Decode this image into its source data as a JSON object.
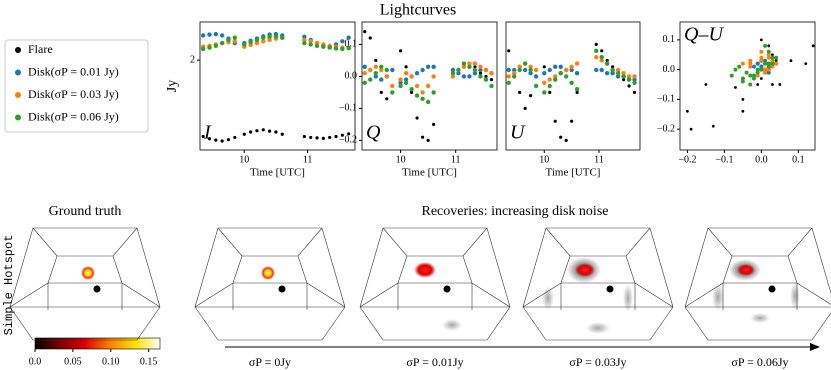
{
  "figure_title": "Lightcurves",
  "chart_data": [
    {
      "type": "scatter",
      "panel_label": "I",
      "y_label": "Jy",
      "x_label": "Time [UTC]",
      "xlim": [
        9.3,
        11.75
      ],
      "xticks": [
        10,
        11
      ],
      "ylim": [
        0,
        2.85
      ],
      "yticks": [
        2
      ],
      "x": [
        9.35,
        9.45,
        9.55,
        9.65,
        9.75,
        9.85,
        10.0,
        10.1,
        10.2,
        10.3,
        10.4,
        10.5,
        10.6,
        10.95,
        11.05,
        11.15,
        11.25,
        11.35,
        11.45,
        11.55,
        11.65
      ],
      "series": [
        {
          "name": "Flare",
          "color": "#000000",
          "values": [
            0.3,
            0.25,
            0.22,
            0.2,
            0.23,
            0.28,
            0.35,
            0.4,
            0.43,
            0.45,
            0.42,
            0.4,
            0.35,
            0.3,
            0.28,
            0.27,
            0.26,
            0.28,
            0.3,
            0.33,
            0.36
          ]
        },
        {
          "name": "Disk(σP = 0.01 Jy)",
          "color": "#1f77b4",
          "values": [
            2.55,
            2.57,
            2.58,
            2.55,
            2.48,
            2.38,
            2.38,
            2.43,
            2.48,
            2.53,
            2.57,
            2.58,
            2.55,
            2.52,
            2.45,
            2.38,
            2.32,
            2.3,
            2.35,
            2.42,
            2.5
          ]
        },
        {
          "name": "Disk(σP = 0.03 Jy)",
          "color": "#ff7f0e",
          "values": [
            2.3,
            2.32,
            2.35,
            2.38,
            2.4,
            2.42,
            2.3,
            2.34,
            2.38,
            2.42,
            2.45,
            2.48,
            2.5,
            2.45,
            2.42,
            2.38,
            2.35,
            2.32,
            2.3,
            2.28,
            2.27
          ]
        },
        {
          "name": "Disk(σP = 0.06 Jy)",
          "color": "#2ca02c",
          "values": [
            2.25,
            2.28,
            2.32,
            2.38,
            2.45,
            2.5,
            2.35,
            2.4,
            2.45,
            2.5,
            2.52,
            2.53,
            2.5,
            2.38,
            2.35,
            2.32,
            2.3,
            2.28,
            2.26,
            2.25,
            2.27
          ]
        }
      ]
    },
    {
      "type": "scatter",
      "panel_label": "Q",
      "x_label": "Time [UTC]",
      "xlim": [
        9.3,
        11.75
      ],
      "xticks": [
        10,
        11
      ],
      "ylim": [
        -0.23,
        0.17
      ],
      "yticks": [
        {
          "value": -0.2,
          "label": "−0.2"
        },
        {
          "value": -0.1,
          "label": "−0.1"
        },
        {
          "value": 0,
          "label": "0.0"
        },
        0.1
      ],
      "x": [
        9.35,
        9.45,
        9.55,
        9.65,
        9.75,
        9.85,
        10.0,
        10.1,
        10.2,
        10.3,
        10.4,
        10.5,
        10.6,
        10.95,
        11.05,
        11.15,
        11.25,
        11.35,
        11.45,
        11.55,
        11.65
      ],
      "series": [
        {
          "color": "#000000",
          "values": [
            0.14,
            0.12,
            0.05,
            -0.05,
            -0.07,
            0.02,
            0.08,
            0.03,
            -0.05,
            -0.13,
            -0.19,
            -0.2,
            -0.15,
            0.0,
            0.02,
            0.03,
            0.04,
            0.03,
            0.01,
            0.0,
            -0.01
          ]
        },
        {
          "color": "#1f77b4",
          "values": [
            0.03,
            0.02,
            0.0,
            -0.01,
            0.0,
            0.02,
            -0.02,
            -0.01,
            0.0,
            0.01,
            0.02,
            0.03,
            0.03,
            0.02,
            0.01,
            0.0,
            0.0,
            0.01,
            0.02,
            0.02,
            0.01
          ]
        },
        {
          "color": "#ff7f0e",
          "values": [
            0.01,
            0.02,
            0.03,
            0.02,
            0.0,
            -0.03,
            -0.01,
            0.01,
            0.0,
            -0.03,
            -0.05,
            -0.03,
            0.0,
            0.0,
            0.02,
            0.03,
            0.04,
            0.04,
            0.03,
            0.02,
            0.01
          ]
        },
        {
          "color": "#2ca02c",
          "values": [
            -0.02,
            -0.01,
            0.01,
            0.03,
            0.02,
            -0.05,
            -0.03,
            -0.02,
            -0.04,
            -0.06,
            -0.07,
            -0.08,
            -0.05,
            0.01,
            0.02,
            0.04,
            0.03,
            0.02,
            0.0,
            -0.01,
            -0.03
          ]
        }
      ]
    },
    {
      "type": "scatter",
      "panel_label": "U",
      "x_label": "Time [UTC]",
      "xlim": [
        9.3,
        11.75
      ],
      "xticks": [
        10,
        11
      ],
      "ylim": [
        -0.23,
        0.17
      ],
      "x": [
        9.35,
        9.45,
        9.55,
        9.65,
        9.75,
        9.85,
        10.0,
        10.1,
        10.2,
        10.3,
        10.4,
        10.5,
        10.6,
        10.95,
        11.05,
        11.15,
        11.25,
        11.35,
        11.45,
        11.55,
        11.65
      ],
      "series": [
        {
          "color": "#000000",
          "values": [
            0.08,
            0.02,
            -0.05,
            -0.1,
            -0.06,
            0.0,
            0.03,
            -0.05,
            -0.14,
            -0.19,
            -0.2,
            -0.14,
            -0.05,
            0.1,
            0.08,
            0.05,
            0.03,
            0.01,
            -0.01,
            -0.03,
            -0.05
          ]
        },
        {
          "color": "#1f77b4",
          "values": [
            0.02,
            0.02,
            0.03,
            0.02,
            0.01,
            0.0,
            0.01,
            0.02,
            0.03,
            0.03,
            0.02,
            0.02,
            0.01,
            0.02,
            0.02,
            0.01,
            0.01,
            0.0,
            0.0,
            -0.01,
            -0.01
          ]
        },
        {
          "color": "#ff7f0e",
          "values": [
            0.0,
            0.01,
            0.03,
            0.04,
            0.03,
            0.02,
            -0.02,
            -0.01,
            0.0,
            0.01,
            0.02,
            0.03,
            0.04,
            0.06,
            0.05,
            0.04,
            0.02,
            0.02,
            0.01,
            0.0,
            0.0
          ]
        },
        {
          "color": "#2ca02c",
          "values": [
            -0.02,
            0.0,
            0.02,
            0.04,
            0.02,
            -0.03,
            -0.05,
            -0.03,
            -0.01,
            0.01,
            0.0,
            -0.02,
            -0.04,
            0.08,
            0.06,
            0.04,
            0.02,
            0.01,
            0.0,
            -0.01,
            -0.02
          ]
        }
      ]
    },
    {
      "type": "scatter",
      "panel_label": "Q–U",
      "xlim": [
        -0.22,
        0.145
      ],
      "xticks": [
        {
          "value": -0.2,
          "label": "−0.2"
        },
        {
          "value": -0.1,
          "label": "−0.1"
        },
        {
          "value": 0,
          "label": "0.0"
        },
        0.1
      ],
      "ylim": [
        -0.27,
        0.16
      ],
      "yticks": [
        {
          "value": -0.2,
          "label": "−0.2"
        },
        {
          "value": -0.1,
          "label": "−0.1"
        },
        {
          "value": 0,
          "label": "0.0"
        },
        0.1
      ]
    },
    {
      "type": "colorbar",
      "xlim": [
        0,
        0.165
      ],
      "xticks": [
        {
          "value": 0,
          "label": "0.0"
        },
        0.05,
        {
          "value": 0.1,
          "label": "0.10"
        },
        0.15
      ],
      "colors": [
        "#000000",
        "#7a0000",
        "#e00000",
        "#ff8000",
        "#ffe000",
        "#ffffff"
      ]
    }
  ],
  "images": {
    "row_label": "Simple Hotspot",
    "ground_truth_title": "Ground truth",
    "recoveries_title": "Recoveries: increasing disk noise",
    "sigma_labels": [
      "σP = 0Jy",
      "σP = 0.01Jy",
      "σP = 0.03Jy",
      "σP = 0.06Jy"
    ]
  }
}
